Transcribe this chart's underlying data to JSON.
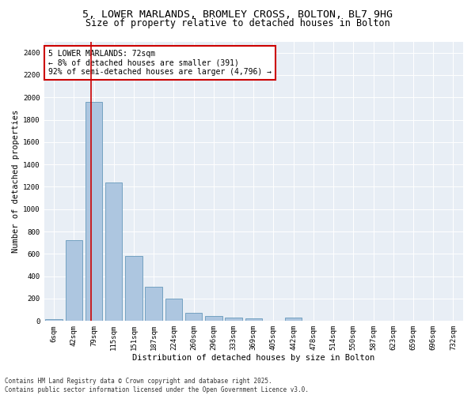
{
  "title_line1": "5, LOWER MARLANDS, BROMLEY CROSS, BOLTON, BL7 9HG",
  "title_line2": "Size of property relative to detached houses in Bolton",
  "xlabel": "Distribution of detached houses by size in Bolton",
  "ylabel": "Number of detached properties",
  "categories": [
    "6sqm",
    "42sqm",
    "79sqm",
    "115sqm",
    "151sqm",
    "187sqm",
    "224sqm",
    "260sqm",
    "296sqm",
    "333sqm",
    "369sqm",
    "405sqm",
    "442sqm",
    "478sqm",
    "514sqm",
    "550sqm",
    "587sqm",
    "623sqm",
    "659sqm",
    "696sqm",
    "732sqm"
  ],
  "values": [
    15,
    720,
    1960,
    1240,
    580,
    305,
    200,
    75,
    42,
    30,
    25,
    0,
    28,
    5,
    0,
    0,
    0,
    0,
    0,
    0,
    0
  ],
  "bar_color": "#adc6e0",
  "bar_edge_color": "#6699bb",
  "vline_color": "#cc0000",
  "vline_x": 1.87,
  "annotation_text": "5 LOWER MARLANDS: 72sqm\n← 8% of detached houses are smaller (391)\n92% of semi-detached houses are larger (4,796) →",
  "annotation_box_color": "#cc0000",
  "annotation_bg": "#ffffff",
  "ylim": [
    0,
    2500
  ],
  "yticks": [
    0,
    200,
    400,
    600,
    800,
    1000,
    1200,
    1400,
    1600,
    1800,
    2000,
    2200,
    2400
  ],
  "bg_color": "#e8eef5",
  "footnote": "Contains HM Land Registry data © Crown copyright and database right 2025.\nContains public sector information licensed under the Open Government Licence v3.0.",
  "title_fontsize": 9.5,
  "subtitle_fontsize": 8.5,
  "axis_label_fontsize": 7.5,
  "tick_fontsize": 6.5,
  "annotation_fontsize": 7.0,
  "footnote_fontsize": 5.5
}
